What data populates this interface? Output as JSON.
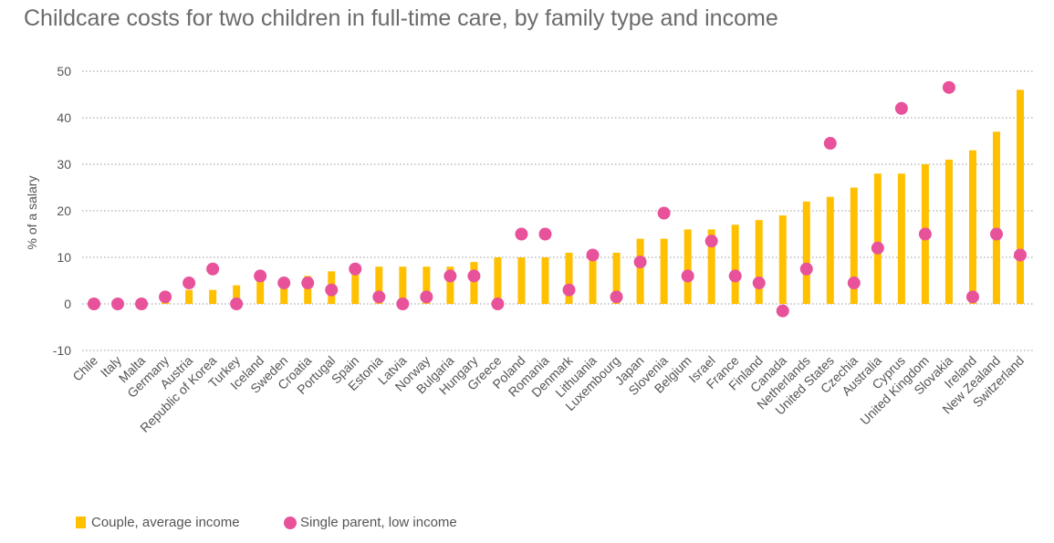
{
  "chart_data": {
    "type": "bar",
    "title": "Childcare costs for two children in full-time care, by family type and income",
    "ylabel": "% of a salary",
    "xlabel": "",
    "ylim": [
      -10,
      50
    ],
    "yticks": [
      -10,
      0,
      10,
      20,
      30,
      40,
      50
    ],
    "grid": true,
    "categories": [
      "Chile",
      "Italy",
      "Malta",
      "Germany",
      "Austria",
      "Republic of Korea",
      "Turkey",
      "Iceland",
      "Sweden",
      "Croatia",
      "Portugal",
      "Spain",
      "Estonia",
      "Latvia",
      "Norway",
      "Bulgaria",
      "Hungary",
      "Greece",
      "Poland",
      "Romania",
      "Denmark",
      "Lithuania",
      "Luxembourg",
      "Japan",
      "Slovenia",
      "Belgium",
      "Israel",
      "France",
      "Finland",
      "Canada",
      "Netherlands",
      "United States",
      "Czechia",
      "Australia",
      "Cyprus",
      "United Kingdom",
      "Slovakia",
      "Ireland",
      "New Zealand",
      "Switzerland"
    ],
    "series": [
      {
        "name": "Couple, average income",
        "type": "bar",
        "color": "#ffc000",
        "values": [
          0,
          0,
          0,
          1,
          3,
          3,
          4,
          5,
          5,
          6,
          7,
          8,
          8,
          8,
          8,
          8,
          9,
          10,
          10,
          10,
          11,
          11,
          11,
          14,
          14,
          16,
          16,
          17,
          18,
          19,
          22,
          23,
          25,
          28,
          28,
          30,
          31,
          33,
          37,
          46
        ]
      },
      {
        "name": "Single parent, low income",
        "type": "scatter",
        "color": "#e8529b",
        "values": [
          0,
          0,
          0,
          1.5,
          4.5,
          7.5,
          0,
          6,
          4.5,
          4.5,
          3,
          7.5,
          1.5,
          0,
          1.5,
          6,
          6,
          0,
          15,
          15,
          3,
          10.5,
          1.5,
          9,
          19.5,
          6,
          13.5,
          6,
          4.5,
          -1.5,
          7.5,
          34.5,
          4.5,
          12,
          42,
          15,
          46.5,
          1.5,
          15,
          10.5
        ]
      }
    ],
    "legend": "bottom-left"
  }
}
